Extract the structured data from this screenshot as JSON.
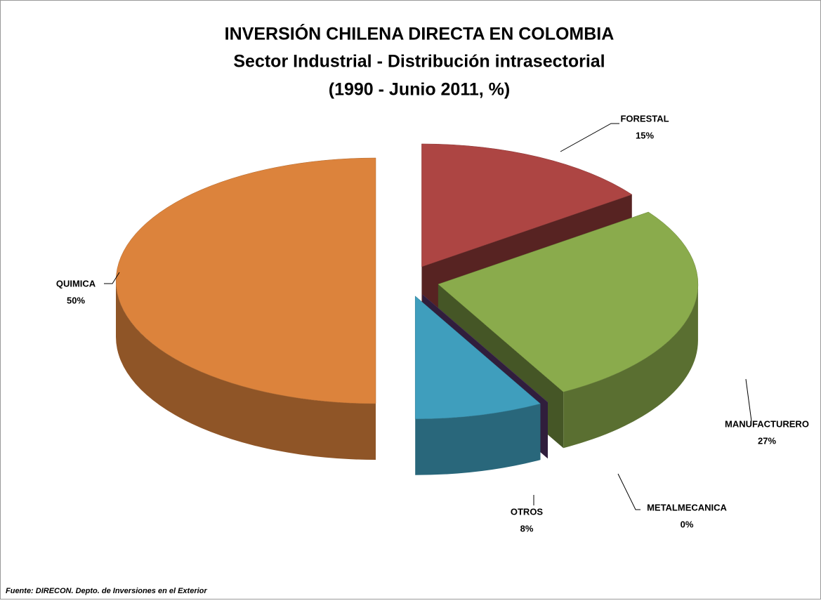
{
  "chart_data": {
    "type": "pie",
    "title": "INVERSIÓN CHILENA DIRECTA EN COLOMBIA",
    "subtitle": "Sector Industrial - Distribución intrasectorial",
    "period": "(1990 - Junio 2011,  %)",
    "categories": [
      "FORESTAL",
      "MANUFACTURERO",
      "METALMECANICA",
      "OTROS",
      "QUIMICA"
    ],
    "values": [
      15,
      27,
      0,
      8,
      50
    ],
    "value_labels": [
      "15%",
      "27%",
      "0%",
      "8%",
      "50%"
    ],
    "colors": [
      "#ad4543",
      "#8aab4c",
      "#5f3c78",
      "#3f9ebd",
      "#dc833c"
    ],
    "source": "Fuente: DIRECON. Depto. de Inversiones en el Exterior"
  }
}
